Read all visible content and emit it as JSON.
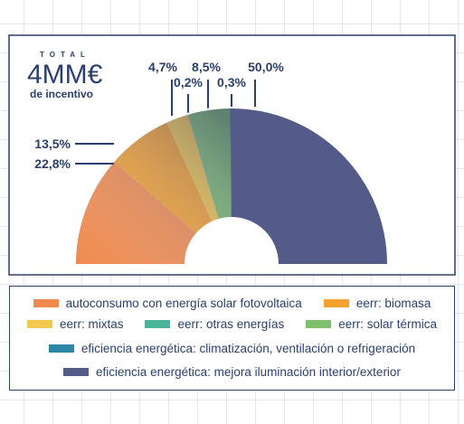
{
  "total": {
    "word": "TOTAL",
    "amount": "4MM€",
    "caption": "de incentivo"
  },
  "chart_data": {
    "type": "pie",
    "variant": "semi-donut",
    "categories": [
      "autoconsumo con energía solar fotovoltaica",
      "eerr: biomasa",
      "eerr: mixtas",
      "eerr: otras energías",
      "eerr: solar térmica",
      "eficiencia energética: climatización, ventilación o refrigeración",
      "eficiencia energética: mejora iluminación interior/exterior"
    ],
    "values": [
      22.8,
      13.5,
      4.7,
      0.2,
      8.5,
      0.3,
      50.0
    ],
    "labels": [
      "22,8%",
      "13,5%",
      "4,7%",
      "0,2%",
      "8,5%",
      "0,3%",
      "50,0%"
    ],
    "colors": [
      "#ee8a4e",
      "#f3a12f",
      "#f2c94e",
      "#4ab49a",
      "#7fc06f",
      "#2d86a8",
      "#545b88"
    ]
  },
  "legend": {
    "rows": [
      [
        0,
        1
      ],
      [
        2,
        3,
        4
      ],
      [
        5
      ],
      [
        6
      ]
    ]
  }
}
